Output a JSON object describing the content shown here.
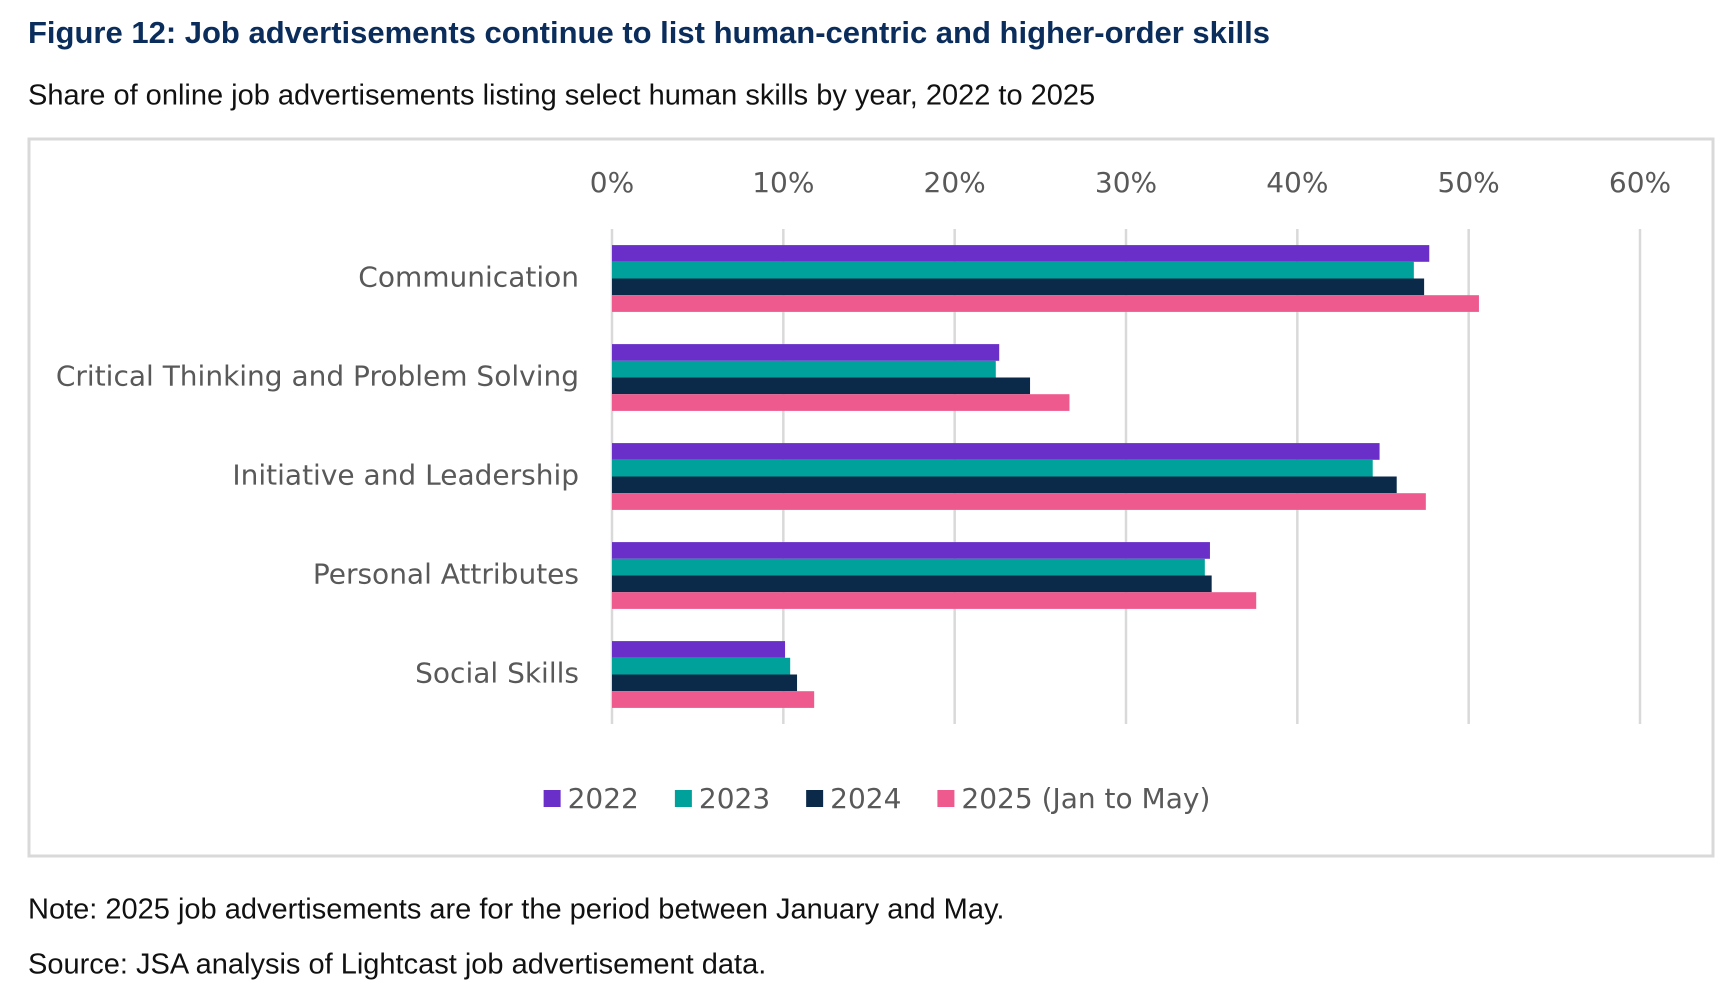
{
  "chart_data": {
    "type": "bar",
    "orientation": "horizontal",
    "title": "Figure 12: Job advertisements continue to list human-centric and higher-order skills",
    "subtitle": "Share of online job advertisements listing select human skills by year, 2022 to 2025",
    "categories": [
      "Communication",
      "Critical Thinking and Problem Solving",
      "Initiative and Leadership",
      "Personal Attributes",
      "Social Skills"
    ],
    "series": [
      {
        "name": "2022",
        "color": "#6a2fc8",
        "values": [
          47.7,
          22.6,
          44.8,
          34.9,
          10.1
        ]
      },
      {
        "name": "2023",
        "color": "#00a19a",
        "values": [
          46.8,
          22.4,
          44.4,
          34.6,
          10.4
        ]
      },
      {
        "name": "2024",
        "color": "#0b2a4a",
        "values": [
          47.4,
          24.4,
          45.8,
          35.0,
          10.8
        ]
      },
      {
        "name": "2025 (Jan to May)",
        "color": "#ee5a8e",
        "values": [
          50.6,
          26.7,
          47.5,
          37.6,
          11.8
        ]
      }
    ],
    "xlim": [
      0,
      60
    ],
    "xticks": [
      {
        "value": 0,
        "label": "0%"
      },
      {
        "value": 10,
        "label": "10%"
      },
      {
        "value": 20,
        "label": "20%"
      },
      {
        "value": 30,
        "label": "30%"
      },
      {
        "value": 40,
        "label": "40%"
      },
      {
        "value": 50,
        "label": "50%"
      },
      {
        "value": 60,
        "label": "60%"
      }
    ],
    "grid": true,
    "legend": "bottom",
    "note": "Note: 2025 job advertisements are for the period between January and May.",
    "source": "Source: JSA analysis of Lightcast job advertisement data."
  }
}
